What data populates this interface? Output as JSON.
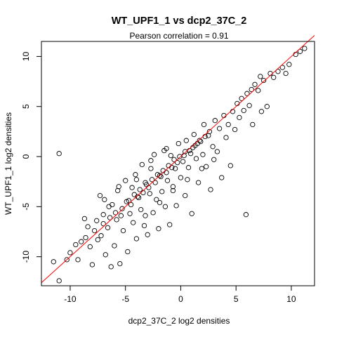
{
  "chart_data": {
    "type": "scatter",
    "title": "WT_UPF1_1 vs dcp2_37C_2",
    "subtitle": "Pearson correlation =  0.91",
    "xlabel": "dcp2_37C_2 log2 densities",
    "ylabel": "WT_UPF1_1 log2 densities",
    "xlim": [
      -12.6,
      12.1
    ],
    "ylim": [
      -12.9,
      11.5
    ],
    "xticks": [
      -10,
      -5,
      0,
      5,
      10
    ],
    "yticks": [
      -10,
      -5,
      0,
      5,
      10
    ],
    "reference_line": {
      "slope": 1,
      "intercept": 0,
      "color": "#ff0000"
    },
    "points": [
      [
        -11.0,
        0.3
      ],
      [
        -11.0,
        -12.4
      ],
      [
        -11.5,
        -10.5
      ],
      [
        -10.3,
        -10.3
      ],
      [
        -10.0,
        -9.6
      ],
      [
        -9.5,
        -8.8
      ],
      [
        -9.0,
        -8.5
      ],
      [
        -9.3,
        -10.3
      ],
      [
        -8.7,
        -6.2
      ],
      [
        -8.4,
        -7.0
      ],
      [
        -8.2,
        -9.0
      ],
      [
        -8.0,
        -10.8
      ],
      [
        -7.6,
        -6.4
      ],
      [
        -7.5,
        -8.3
      ],
      [
        -7.3,
        -3.9
      ],
      [
        -7.2,
        -7.9
      ],
      [
        -7.0,
        -5.8
      ],
      [
        -6.8,
        -9.8
      ],
      [
        -6.6,
        -7.1
      ],
      [
        -6.5,
        -5.0
      ],
      [
        -6.3,
        -11.0
      ],
      [
        -6.2,
        -4.8
      ],
      [
        -6.0,
        -8.9
      ],
      [
        -5.8,
        -6.3
      ],
      [
        -5.7,
        -3.4
      ],
      [
        -5.5,
        -10.7
      ],
      [
        -5.4,
        -5.9
      ],
      [
        -5.2,
        -7.4
      ],
      [
        -5.0,
        -2.4
      ],
      [
        -4.9,
        -4.5
      ],
      [
        -4.8,
        -9.5
      ],
      [
        -4.6,
        -5.7
      ],
      [
        -4.4,
        -3.1
      ],
      [
        -4.3,
        -6.6
      ],
      [
        -4.1,
        -1.8
      ],
      [
        -4.0,
        -8.2
      ],
      [
        -3.8,
        -4.1
      ],
      [
        -3.6,
        -5.3
      ],
      [
        -3.5,
        -0.8
      ],
      [
        -3.3,
        -6.9
      ],
      [
        -3.2,
        -2.6
      ],
      [
        -3.0,
        -7.8
      ],
      [
        -2.8,
        -3.7
      ],
      [
        -2.7,
        -1.2
      ],
      [
        -2.5,
        -5.6
      ],
      [
        -2.4,
        0.2
      ],
      [
        -2.2,
        -4.3
      ],
      [
        -2.0,
        -7.2
      ],
      [
        -1.9,
        -1.9
      ],
      [
        -1.7,
        -3.5
      ],
      [
        -1.5,
        0.6
      ],
      [
        -1.4,
        -5.0
      ],
      [
        -1.2,
        -2.4
      ],
      [
        -1.0,
        -6.8
      ],
      [
        -0.9,
        0.1
      ],
      [
        -0.7,
        -3.0
      ],
      [
        -0.5,
        -1.2
      ],
      [
        -0.4,
        -4.9
      ],
      [
        -0.2,
        1.3
      ],
      [
        0.0,
        -2.1
      ],
      [
        0.2,
        -0.5
      ],
      [
        0.4,
        -3.9
      ],
      [
        0.5,
        1.6
      ],
      [
        0.7,
        -1.1
      ],
      [
        0.9,
        0.3
      ],
      [
        1.0,
        -5.7
      ],
      [
        1.2,
        2.2
      ],
      [
        1.4,
        -0.2
      ],
      [
        1.6,
        -2.6
      ],
      [
        1.8,
        1.5
      ],
      [
        2.0,
        0.2
      ],
      [
        2.1,
        3.2
      ],
      [
        2.3,
        -1.0
      ],
      [
        2.5,
        2.1
      ],
      [
        2.7,
        -3.3
      ],
      [
        2.9,
        1.0
      ],
      [
        3.1,
        3.6
      ],
      [
        3.3,
        0.5
      ],
      [
        3.5,
        2.8
      ],
      [
        3.7,
        -2.1
      ],
      [
        3.9,
        4.1
      ],
      [
        4.1,
        1.9
      ],
      [
        4.3,
        3.2
      ],
      [
        4.5,
        -0.9
      ],
      [
        4.7,
        4.5
      ],
      [
        4.9,
        2.7
      ],
      [
        5.1,
        5.3
      ],
      [
        5.3,
        3.9
      ],
      [
        5.5,
        5.8
      ],
      [
        5.7,
        4.6
      ],
      [
        5.9,
        -5.8
      ],
      [
        6.0,
        6.3
      ],
      [
        6.2,
        5.1
      ],
      [
        6.4,
        6.7
      ],
      [
        6.7,
        7.2
      ],
      [
        7.0,
        6.6
      ],
      [
        7.2,
        8.0
      ],
      [
        7.5,
        7.6
      ],
      [
        7.8,
        5.0
      ],
      [
        8.1,
        8.3
      ],
      [
        8.4,
        7.9
      ],
      [
        8.8,
        8.5
      ],
      [
        9.2,
        8.9
      ],
      [
        9.5,
        8.3
      ],
      [
        9.8,
        9.2
      ],
      [
        10.4,
        10.2
      ],
      [
        10.8,
        10.5
      ],
      [
        11.2,
        10.8
      ],
      [
        6.5,
        3.2
      ],
      [
        7.3,
        4.5
      ],
      [
        -4.5,
        -4.8
      ],
      [
        -3.9,
        -4.0
      ],
      [
        -3.4,
        -3.6
      ],
      [
        -2.9,
        -3.1
      ],
      [
        -2.3,
        -2.6
      ],
      [
        -1.8,
        -2.0
      ],
      [
        -1.3,
        -1.6
      ],
      [
        -0.8,
        -1.1
      ],
      [
        -0.3,
        -0.6
      ],
      [
        0.3,
        0.1
      ],
      [
        0.8,
        0.6
      ],
      [
        1.3,
        1.1
      ],
      [
        1.7,
        1.6
      ],
      [
        2.2,
        2.0
      ],
      [
        2.6,
        2.5
      ],
      [
        -5.9,
        -5.6
      ],
      [
        -5.3,
        -5.2
      ],
      [
        -4.7,
        -4.4
      ],
      [
        -4.2,
        -3.8
      ],
      [
        -3.7,
        -3.3
      ],
      [
        -3.1,
        -2.8
      ],
      [
        -2.6,
        -2.3
      ],
      [
        -2.1,
        -1.8
      ],
      [
        -1.6,
        -1.4
      ],
      [
        -1.1,
        -0.9
      ],
      [
        -0.6,
        -0.3
      ],
      [
        -0.1,
        0.0
      ],
      [
        0.4,
        0.5
      ],
      [
        1.1,
        0.9
      ],
      [
        1.5,
        1.3
      ],
      [
        -6.4,
        -6.1
      ],
      [
        -7.0,
        -6.7
      ],
      [
        -7.8,
        -7.4
      ],
      [
        -8.6,
        -8.1
      ],
      [
        -6.9,
        -4.3
      ],
      [
        -5.6,
        -3.0
      ],
      [
        -4.0,
        -2.3
      ],
      [
        -2.7,
        -0.4
      ],
      [
        -1.3,
        0.8
      ],
      [
        -3.2,
        -5.9
      ],
      [
        -1.9,
        -4.6
      ],
      [
        -0.7,
        -3.4
      ],
      [
        0.6,
        -2.3
      ],
      [
        1.9,
        -1.2
      ],
      [
        3.0,
        -0.3
      ]
    ]
  }
}
